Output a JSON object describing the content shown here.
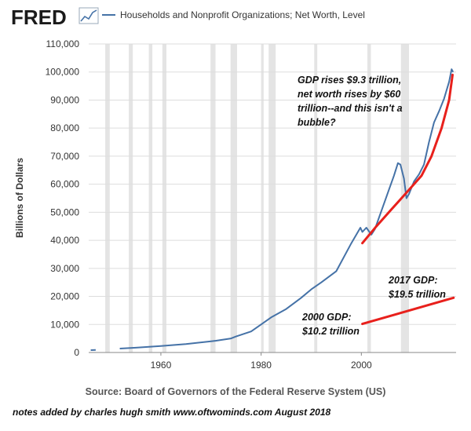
{
  "header": {
    "logo_text": "FRED",
    "series_title": "Households and Nonprofit Organizations; Net Worth, Level"
  },
  "footer": {
    "source": "Source: Board of Governors of the Federal Reserve System (US)",
    "credit": "notes added by charles hugh smith   www.oftwominds.com   August 2018"
  },
  "annotations": {
    "top_note": [
      "GDP rises $9.3 trillion,",
      "net worth rises by $60",
      "trillion--and this isn't a",
      "bubble?"
    ],
    "gdp_2017": [
      "2017 GDP:",
      "$19.5 trillion"
    ],
    "gdp_2000": [
      "2000 GDP:",
      "$10.2 trillion"
    ]
  },
  "colors": {
    "series": "#4572a7",
    "annotation": "#e8201c",
    "recession": "#e4e4e4",
    "grid": "#dddddd"
  },
  "chart_data": {
    "type": "line",
    "ylabel": "Billions of Dollars",
    "xlim": [
      1945.6,
      2018.9
    ],
    "ylim": [
      0,
      110000
    ],
    "x_ticks": [
      1960,
      1980,
      2000
    ],
    "y_ticks": [
      0,
      10000,
      20000,
      30000,
      40000,
      50000,
      60000,
      70000,
      80000,
      90000,
      100000,
      110000
    ],
    "y_tick_labels": [
      "0",
      "10,000",
      "20,000",
      "30,000",
      "40,000",
      "50,000",
      "60,000",
      "70,000",
      "80,000",
      "90,000",
      "100,000",
      "110,000"
    ],
    "grid": "horizontal",
    "recessions": [
      [
        1948.9,
        1949.8
      ],
      [
        1953.6,
        1954.4
      ],
      [
        1957.6,
        1958.3
      ],
      [
        1960.3,
        1961.1
      ],
      [
        1969.9,
        1970.9
      ],
      [
        1973.9,
        1975.2
      ],
      [
        1980.0,
        1980.5
      ],
      [
        1981.5,
        1982.9
      ],
      [
        1990.6,
        1991.2
      ],
      [
        2001.2,
        2001.9
      ],
      [
        2007.9,
        2009.5
      ]
    ],
    "series": [
      {
        "name": "Households and Nonprofit Organizations; Net Worth, Level",
        "segments": [
          {
            "x": [
              1946.0,
              1947.0
            ],
            "y": [
              850,
              900
            ]
          },
          {
            "x": [
              1951.8,
              1955,
              1960,
              1965,
              1970,
              1971,
              1974,
              1975,
              1978,
              1980,
              1982,
              1985,
              1988,
              1990,
              1992,
              1995,
              1998,
              1999.8,
              2000.2,
              2001,
              2002,
              2002.7,
              2003.5,
              2004.5,
              2005.5,
              2006.5,
              2007.3,
              2007.8,
              2008.5,
              2009.0,
              2009.5,
              2010.5,
              2011.5,
              2012.5,
              2013.5,
              2014.5,
              2015.5,
              2016.5,
              2017.5,
              2018.0,
              2018.3
            ],
            "y": [
              1400,
              1700,
              2300,
              3000,
              4000,
              4200,
              5000,
              5700,
              7500,
              10000,
              12500,
              15500,
              19500,
              22500,
              25000,
              29000,
              39000,
              44500,
              43000,
              44500,
              42000,
              44000,
              48000,
              53000,
              58000,
              63000,
              67500,
              67000,
              62000,
              55000,
              56500,
              61000,
              63500,
              67000,
              75000,
              82000,
              86000,
              90500,
              96500,
              101000,
              100000
            ]
          }
        ]
      },
      {
        "name": "",
        "style": "annotation",
        "x": [
          2000.2,
          2003,
          2006,
          2009,
          2012,
          2014,
          2016,
          2017.5,
          2018.2
        ],
        "y": [
          39000,
          45000,
          51000,
          57000,
          63000,
          70000,
          80000,
          90000,
          99000
        ]
      },
      {
        "name": "",
        "style": "annotation",
        "x": [
          2000.2,
          2018.4
        ],
        "y": [
          10200,
          19500
        ]
      }
    ]
  }
}
